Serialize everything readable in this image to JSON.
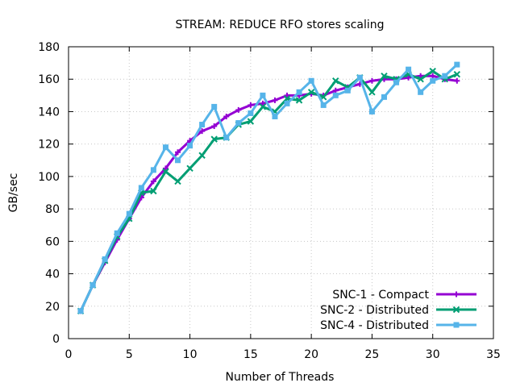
{
  "chart_data": {
    "type": "line",
    "title": "STREAM: REDUCE RFO stores scaling",
    "xlabel": "Number of Threads",
    "ylabel": "GB/sec",
    "xlim": [
      0,
      35
    ],
    "ylim": [
      0,
      180
    ],
    "xticks": [
      0,
      5,
      10,
      15,
      20,
      25,
      30,
      35
    ],
    "yticks": [
      0,
      20,
      40,
      60,
      80,
      100,
      120,
      140,
      160,
      180
    ],
    "grid": true,
    "legend_position": "bottom-right",
    "x": [
      1,
      2,
      3,
      4,
      5,
      6,
      7,
      8,
      9,
      10,
      11,
      12,
      13,
      14,
      15,
      16,
      17,
      18,
      19,
      20,
      21,
      22,
      23,
      24,
      25,
      26,
      27,
      28,
      29,
      30,
      31,
      32
    ],
    "series": [
      {
        "name": "SNC-1 - Compact",
        "color": "#9400d3",
        "marker": "plus",
        "values": [
          17,
          33,
          47,
          61,
          74,
          87,
          97,
          105,
          115,
          122,
          128,
          131,
          137,
          141,
          144,
          145,
          147,
          150,
          150,
          151,
          150,
          153,
          155,
          157,
          159,
          160,
          160,
          161,
          162,
          162,
          160,
          159
        ]
      },
      {
        "name": "SNC-2 - Distributed",
        "color": "#009e73",
        "marker": "x",
        "values": [
          17,
          33,
          48,
          63,
          74,
          90,
          91,
          103,
          97,
          105,
          113,
          123,
          124,
          132,
          134,
          143,
          140,
          148,
          147,
          152,
          149,
          159,
          155,
          161,
          152,
          162,
          160,
          163,
          160,
          165,
          160,
          163
        ]
      },
      {
        "name": "SNC-4 - Distributed",
        "color": "#56b4e9",
        "marker": "square",
        "values": [
          17,
          33,
          49,
          65,
          77,
          93,
          104,
          118,
          110,
          119,
          132,
          143,
          124,
          133,
          139,
          150,
          137,
          145,
          152,
          159,
          144,
          150,
          153,
          161,
          140,
          149,
          158,
          166,
          152,
          159,
          162,
          169
        ]
      }
    ]
  }
}
